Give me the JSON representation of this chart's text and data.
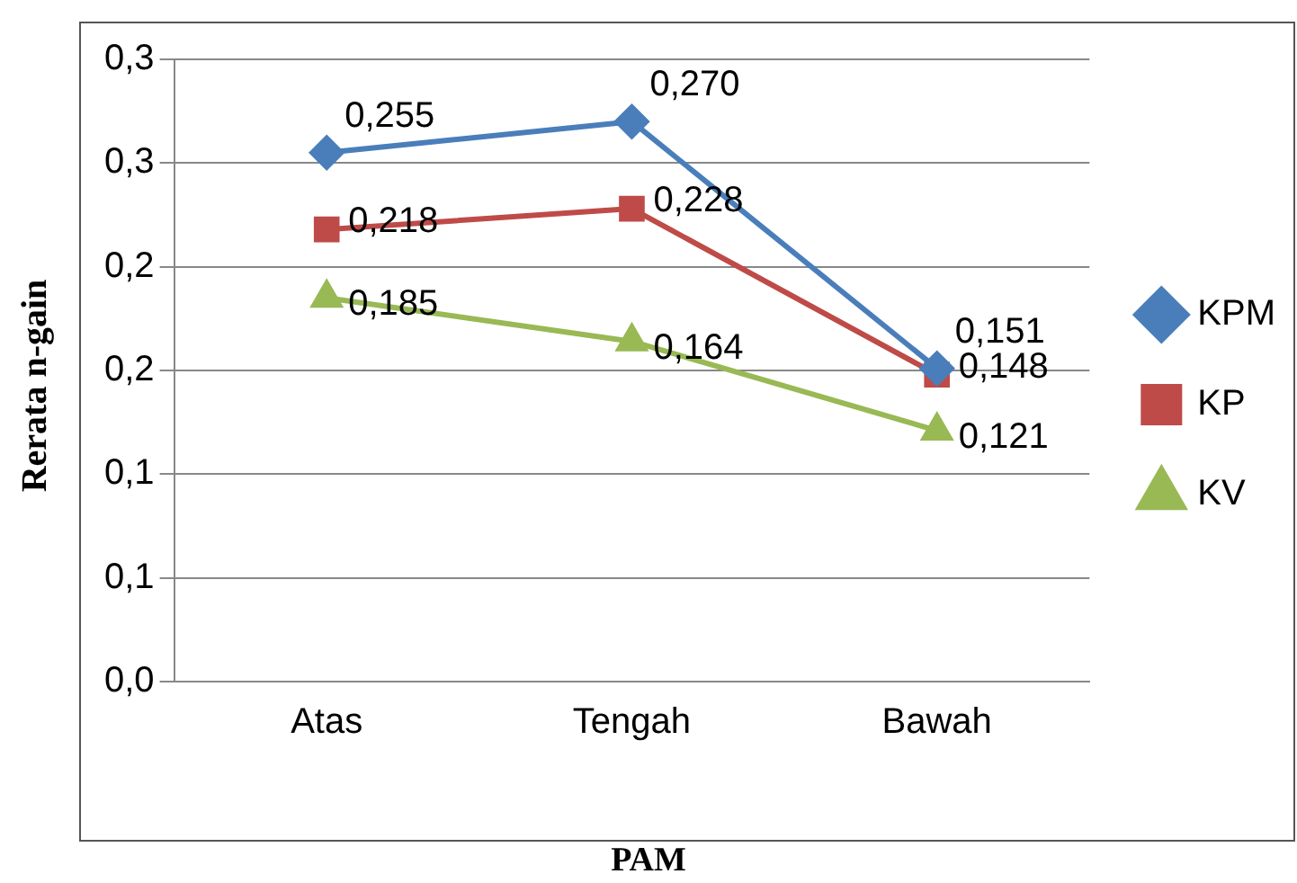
{
  "chart_data": {
    "type": "line",
    "xlabel": "PAM",
    "ylabel": "Rerata n-gain",
    "categories": [
      "Atas",
      "Tengah",
      "Bawah"
    ],
    "series": [
      {
        "name": "KPM",
        "color": "#4a7ebb",
        "marker": "diamond",
        "values": [
          0.255,
          0.27,
          0.151
        ],
        "value_labels": [
          "0,255",
          "0,270",
          "0,151"
        ]
      },
      {
        "name": "KP",
        "color": "#be4b48",
        "marker": "square",
        "values": [
          0.218,
          0.228,
          0.148
        ],
        "value_labels": [
          "0,218",
          "0,228",
          "0,148"
        ]
      },
      {
        "name": "KV",
        "color": "#98b954",
        "marker": "triangle",
        "values": [
          0.185,
          0.164,
          0.121
        ],
        "value_labels": [
          "0,185",
          "0,164",
          "0,121"
        ]
      }
    ],
    "ylim": [
      0,
      0.3
    ],
    "yticks": [
      {
        "value": 0,
        "label": "0,0"
      },
      {
        "value": 0.05,
        "label": "0,1"
      },
      {
        "value": 0.1,
        "label": "0,1"
      },
      {
        "value": 0.15,
        "label": "0,2"
      },
      {
        "value": 0.2,
        "label": "0,2"
      },
      {
        "value": 0.25,
        "label": "0,3"
      },
      {
        "value": 0.3,
        "label": "0,3"
      }
    ],
    "grid": "y",
    "legend": "right"
  }
}
